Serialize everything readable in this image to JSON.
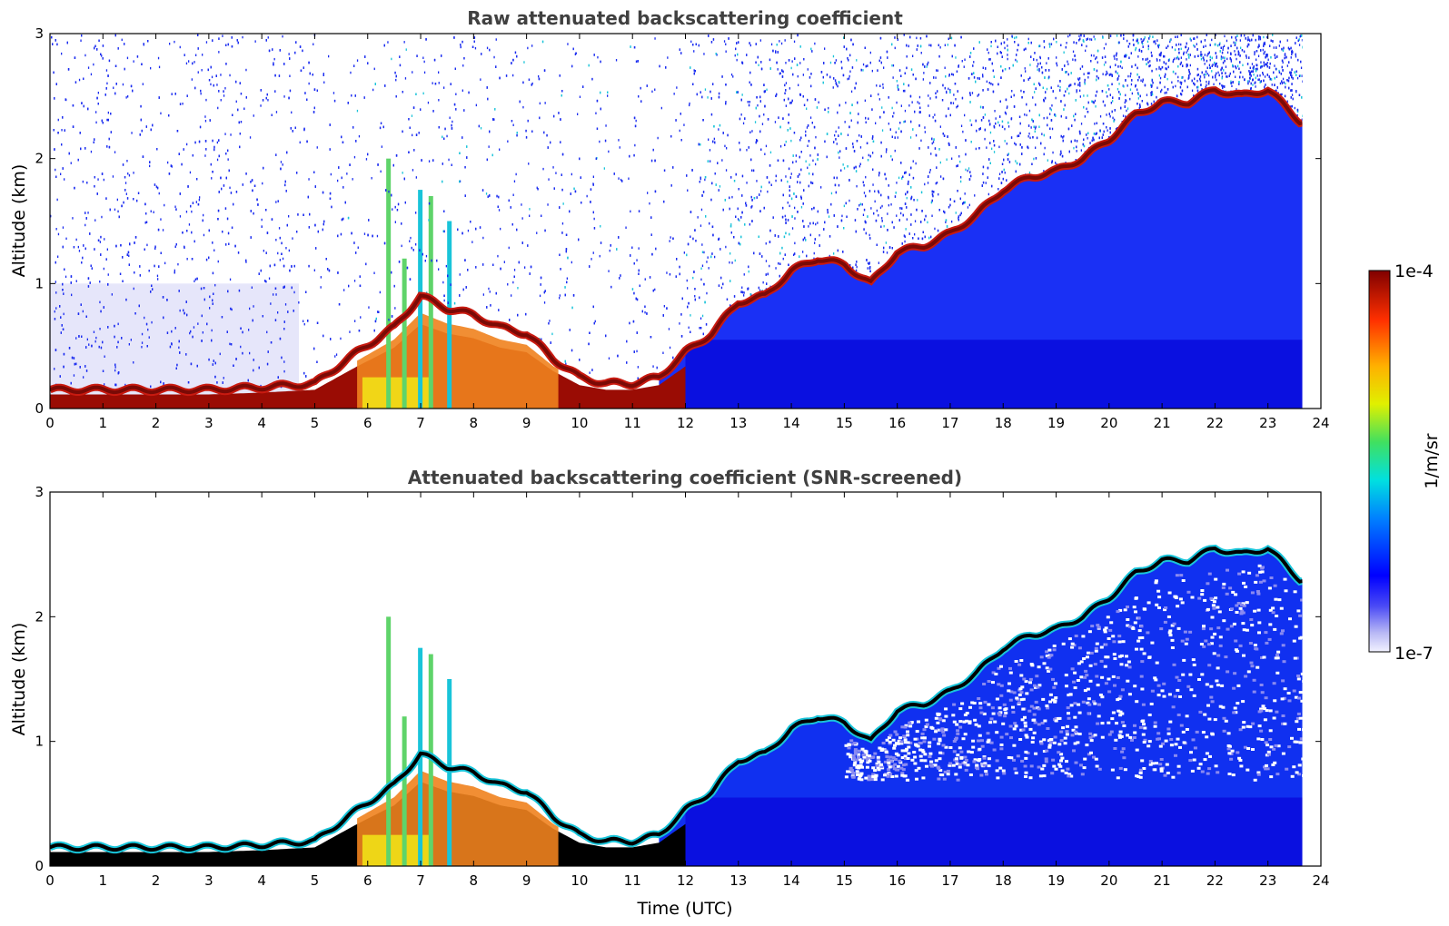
{
  "chart_data": [
    {
      "type": "heatmap",
      "title": "Raw attenuated backscattering coefficient",
      "xlabel": "",
      "ylabel": "Altitude (km)",
      "xlim": [
        0,
        24
      ],
      "ylim": [
        0,
        3
      ],
      "xticks": [
        "0",
        "1",
        "2",
        "3",
        "4",
        "5",
        "6",
        "7",
        "8",
        "9",
        "10",
        "11",
        "12",
        "13",
        "14",
        "15",
        "16",
        "17",
        "18",
        "19",
        "20",
        "21",
        "22",
        "23",
        "24"
      ],
      "yticks": [
        "0",
        "1",
        "2",
        "3"
      ],
      "data_end_hour": 23.65,
      "layer_top_km": {
        "x": [
          0,
          1,
          2,
          3,
          4,
          5,
          5.8,
          6.5,
          7,
          7.5,
          8,
          8.5,
          9,
          9.5,
          10,
          10.5,
          11,
          11.5,
          12,
          12.5,
          13,
          13.5,
          14,
          14.5,
          15,
          15.5,
          16,
          16.5,
          17,
          17.5,
          18,
          18.5,
          19,
          19.5,
          20,
          20.5,
          21,
          21.5,
          22,
          22.5,
          23,
          23.6
        ],
        "y": [
          0.15,
          0.15,
          0.15,
          0.15,
          0.17,
          0.2,
          0.45,
          0.65,
          0.9,
          0.8,
          0.75,
          0.65,
          0.6,
          0.4,
          0.25,
          0.2,
          0.2,
          0.25,
          0.45,
          0.6,
          0.85,
          0.9,
          1.1,
          1.2,
          1.15,
          1.0,
          1.25,
          1.3,
          1.4,
          1.55,
          1.75,
          1.85,
          1.9,
          2.0,
          2.15,
          2.35,
          2.45,
          2.45,
          2.55,
          2.5,
          2.55,
          2.3
        ]
      },
      "colorbar": {
        "max_label": "1e-4",
        "min_label": "1e-7",
        "unit": "1/m/sr",
        "scale": "log"
      }
    },
    {
      "type": "heatmap",
      "title": "Attenuated backscattering coefficient (SNR-screened)",
      "xlabel": "Time (UTC)",
      "ylabel": "Altitude (km)",
      "xlim": [
        0,
        24
      ],
      "ylim": [
        0,
        3
      ],
      "xticks": [
        "0",
        "1",
        "2",
        "3",
        "4",
        "5",
        "6",
        "7",
        "8",
        "9",
        "10",
        "11",
        "12",
        "13",
        "14",
        "15",
        "16",
        "17",
        "18",
        "19",
        "20",
        "21",
        "22",
        "23",
        "24"
      ],
      "yticks": [
        "0",
        "1",
        "2",
        "3"
      ],
      "data_end_hour": 23.65,
      "layer_top_km": {
        "x": [
          0,
          1,
          2,
          3,
          4,
          5,
          5.8,
          6.5,
          7,
          7.5,
          8,
          8.5,
          9,
          9.5,
          10,
          10.5,
          11,
          11.5,
          12,
          12.5,
          13,
          13.5,
          14,
          14.5,
          15,
          15.5,
          16,
          16.5,
          17,
          17.5,
          18,
          18.5,
          19,
          19.5,
          20,
          20.5,
          21,
          21.5,
          22,
          22.5,
          23,
          23.6
        ],
        "y": [
          0.15,
          0.15,
          0.15,
          0.15,
          0.17,
          0.2,
          0.45,
          0.65,
          0.9,
          0.8,
          0.75,
          0.65,
          0.6,
          0.4,
          0.25,
          0.2,
          0.2,
          0.25,
          0.45,
          0.6,
          0.85,
          0.9,
          1.1,
          1.2,
          1.15,
          1.0,
          1.25,
          1.3,
          1.4,
          1.55,
          1.75,
          1.85,
          1.9,
          2.0,
          2.15,
          2.35,
          2.45,
          2.45,
          2.55,
          2.5,
          2.55,
          2.3
        ]
      }
    }
  ],
  "colors": {
    "white": "#ffffff",
    "background_faint": "#e6e6fa",
    "noise_blue": "#1a2cf0",
    "deep_blue": "#0a14e0",
    "cyan": "#19c4d9",
    "green": "#5fd46a",
    "yellow": "#f2e816",
    "orange": "#f0821e",
    "red": "#c81a10",
    "dark_red": "#7a0a06",
    "black": "#000000"
  }
}
